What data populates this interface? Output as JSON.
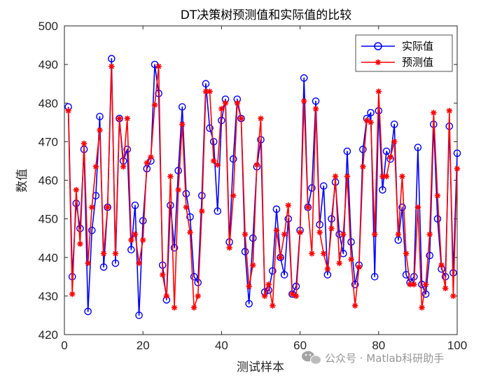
{
  "chart_data": {
    "type": "line",
    "title": "DT决策树预测值和实际值的比较",
    "xlabel": "测试样本",
    "ylabel": "数值",
    "xlim": [
      0,
      100
    ],
    "ylim": [
      420,
      500
    ],
    "xticks": [
      0,
      20,
      40,
      60,
      80,
      100
    ],
    "yticks": [
      420,
      430,
      440,
      450,
      460,
      470,
      480,
      490,
      500
    ],
    "grid": false,
    "legend_position": "top-right",
    "x": [
      1,
      2,
      3,
      4,
      5,
      6,
      7,
      8,
      9,
      10,
      11,
      12,
      13,
      14,
      15,
      16,
      17,
      18,
      19,
      20,
      21,
      22,
      23,
      24,
      25,
      26,
      27,
      28,
      29,
      30,
      31,
      32,
      33,
      34,
      35,
      36,
      37,
      38,
      39,
      40,
      41,
      42,
      43,
      44,
      45,
      46,
      47,
      48,
      49,
      50,
      51,
      52,
      53,
      54,
      55,
      56,
      57,
      58,
      59,
      60,
      61,
      62,
      63,
      64,
      65,
      66,
      67,
      68,
      69,
      70,
      71,
      72,
      73,
      74,
      75,
      76,
      77,
      78,
      79,
      80,
      81,
      82,
      83,
      84,
      85,
      86,
      87,
      88,
      89,
      90,
      91,
      92,
      93,
      94,
      95,
      96,
      97,
      98,
      99,
      100
    ],
    "series": [
      {
        "name": "实际值",
        "color": "#0000ff",
        "marker": "circle",
        "values": [
          479,
          435,
          454,
          447.5,
          468,
          426,
          447,
          456,
          476.5,
          437.5,
          453,
          491.5,
          438.5,
          476,
          465,
          468,
          442,
          453.5,
          425,
          449.5,
          463,
          465,
          490,
          482.5,
          438,
          429,
          453.5,
          442.5,
          462.5,
          479,
          456.5,
          450.5,
          435,
          433.5,
          456,
          485,
          473.5,
          470,
          452,
          475.5,
          481,
          444,
          465.5,
          481,
          476,
          441.5,
          428,
          445,
          463.5,
          470.5,
          431,
          431.5,
          436.5,
          452.5,
          440,
          435.5,
          450,
          430.5,
          432.5,
          447,
          486.5,
          453,
          458,
          480.5,
          448.5,
          458.5,
          435.5,
          450,
          459.5,
          446,
          441,
          467.5,
          444,
          433,
          438,
          468,
          476,
          477.5,
          435,
          478,
          457.5,
          467.5,
          465.5,
          474.5,
          444.5,
          453,
          435.5,
          433.5,
          435,
          468.5,
          433,
          430.5,
          440.5,
          474.5,
          450,
          437,
          435,
          474,
          436,
          467
        ]
      },
      {
        "name": "预测值",
        "color": "#ff0000",
        "marker": "asterisk",
        "values": [
          478,
          430.5,
          457.5,
          443.5,
          469.5,
          438.5,
          453,
          463.5,
          473,
          441,
          453,
          489.5,
          441,
          476,
          463.5,
          476,
          444.5,
          446,
          438.5,
          444.5,
          464.5,
          466,
          479.5,
          489.5,
          435.5,
          430,
          461,
          427,
          457.5,
          474.5,
          453,
          446.5,
          427,
          430,
          452,
          483,
          483,
          465,
          464,
          478.5,
          480,
          442.5,
          456,
          480,
          476,
          446,
          432.5,
          438,
          464,
          476,
          430,
          433,
          427.5,
          447,
          440,
          446,
          453.5,
          430.5,
          430,
          446.5,
          480.5,
          453,
          441,
          478.5,
          446.5,
          441,
          437,
          447.5,
          461,
          438.5,
          446,
          461,
          439.5,
          427.5,
          437.5,
          463.5,
          475.5,
          475,
          446,
          483,
          461,
          461,
          466,
          470,
          446,
          461,
          441,
          433,
          433,
          453,
          427,
          433,
          446,
          477.5,
          456,
          438,
          432,
          478,
          430,
          463
        ]
      }
    ]
  },
  "watermark": "公众号 · Matlab科研助手"
}
